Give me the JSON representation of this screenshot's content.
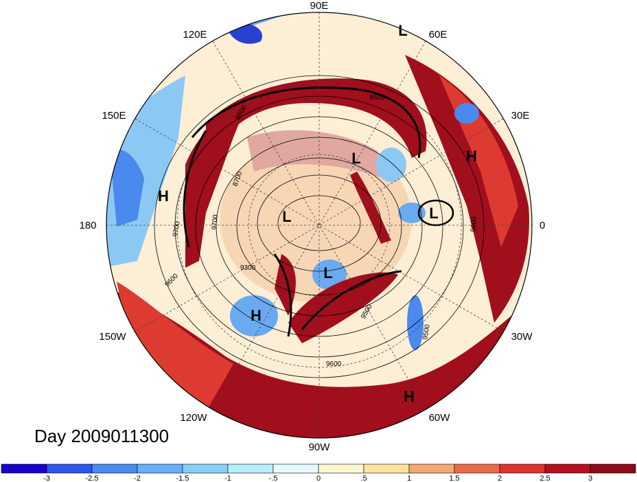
{
  "title": "Day 2009011300",
  "longitude_labels": [
    "90E",
    "60E",
    "30E",
    "0",
    "30W",
    "60W",
    "90W",
    "120W",
    "150W",
    "180",
    "150E",
    "120E"
  ],
  "pressure_labels": [
    {
      "label": "L"
    },
    {
      "label": "L"
    },
    {
      "label": "L"
    },
    {
      "label": "L"
    },
    {
      "label": "L"
    },
    {
      "label": "H"
    },
    {
      "label": "H"
    },
    {
      "label": "H"
    },
    {
      "label": "H"
    }
  ],
  "contour_labels": [
    "9600",
    "9500",
    "9300",
    "9700",
    "8700",
    "9600",
    "9500",
    "9500",
    "9600",
    "9700",
    "9600"
  ],
  "colorbar": {
    "ticks": [
      "-3",
      "-2.5",
      "-2",
      "-1.5",
      "-1",
      "-.5",
      "0",
      ".5",
      "1",
      "1.5",
      "2",
      "2.5",
      "3"
    ],
    "colors": [
      "#1a00c8",
      "#2f55e6",
      "#4a8aee",
      "#6aaef5",
      "#8ccdf8",
      "#b8eefa",
      "#e6fafc",
      "#fdf7cf",
      "#fbe2a0",
      "#f3a774",
      "#ea6b4d",
      "#dc3431",
      "#b2101c",
      "#8c0a1a"
    ]
  },
  "colors": {
    "warm_max": "#a10e1c",
    "warm_mid": "#dd3a32",
    "warm_low": "#f4a97a",
    "neutral": "#fff8e0",
    "cool_low": "#bfe9f6",
    "cool_mid": "#6aaaf0",
    "cool_max": "#2a40d0"
  }
}
